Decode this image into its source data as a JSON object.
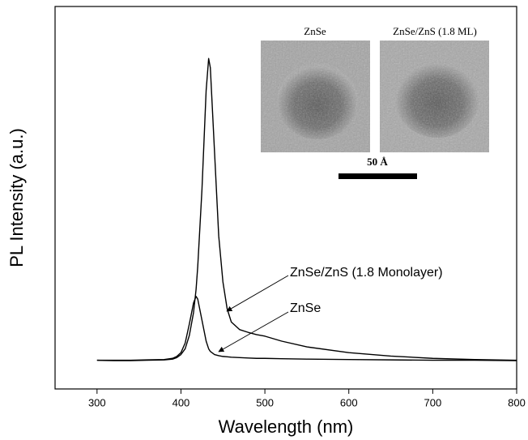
{
  "chart_data": {
    "type": "line",
    "xlabel": "Wavelength (nm)",
    "ylabel": "PL Intensity (a.u.)",
    "x": [
      300,
      320,
      340,
      360,
      380,
      390,
      395,
      400,
      405,
      410,
      415,
      418,
      420,
      425,
      430,
      433,
      435,
      440,
      445,
      450,
      455,
      460,
      470,
      480,
      490,
      500,
      520,
      550,
      600,
      650,
      700,
      750,
      800
    ],
    "series": [
      {
        "name": "ZnSe/ZnS (1.8 Monolayer)",
        "color": "#000000",
        "values": [
          7.5,
          7.4,
          7.4,
          7.5,
          7.6,
          7.8,
          8.2,
          9,
          10.5,
          14,
          20,
          26,
          32,
          52,
          78,
          86.4,
          84,
          62,
          40,
          28,
          21,
          17.5,
          15.5,
          14.8,
          14.2,
          13.8,
          12.5,
          11,
          9.5,
          8.6,
          8,
          7.7,
          7.5
        ]
      },
      {
        "name": "ZnSe",
        "color": "#000000",
        "values": [
          7.5,
          7.5,
          7.5,
          7.6,
          7.7,
          8,
          8.5,
          9.5,
          12,
          17,
          22.5,
          24.2,
          23.5,
          18,
          12.5,
          10.5,
          9.8,
          9,
          8.7,
          8.5,
          8.4,
          8.3,
          8.2,
          8.1,
          8,
          8,
          7.9,
          7.8,
          7.7,
          7.6,
          7.5,
          7.5,
          7.4
        ]
      }
    ],
    "xlim": [
      250,
      800
    ],
    "ylim": [
      0,
      100
    ],
    "xticks": [
      300,
      400,
      500,
      600,
      700,
      800
    ],
    "inset": {
      "labels": [
        "ZnSe",
        "ZnSe/ZnS (1.8 ML)"
      ],
      "scale_bar": "50 Å"
    }
  }
}
